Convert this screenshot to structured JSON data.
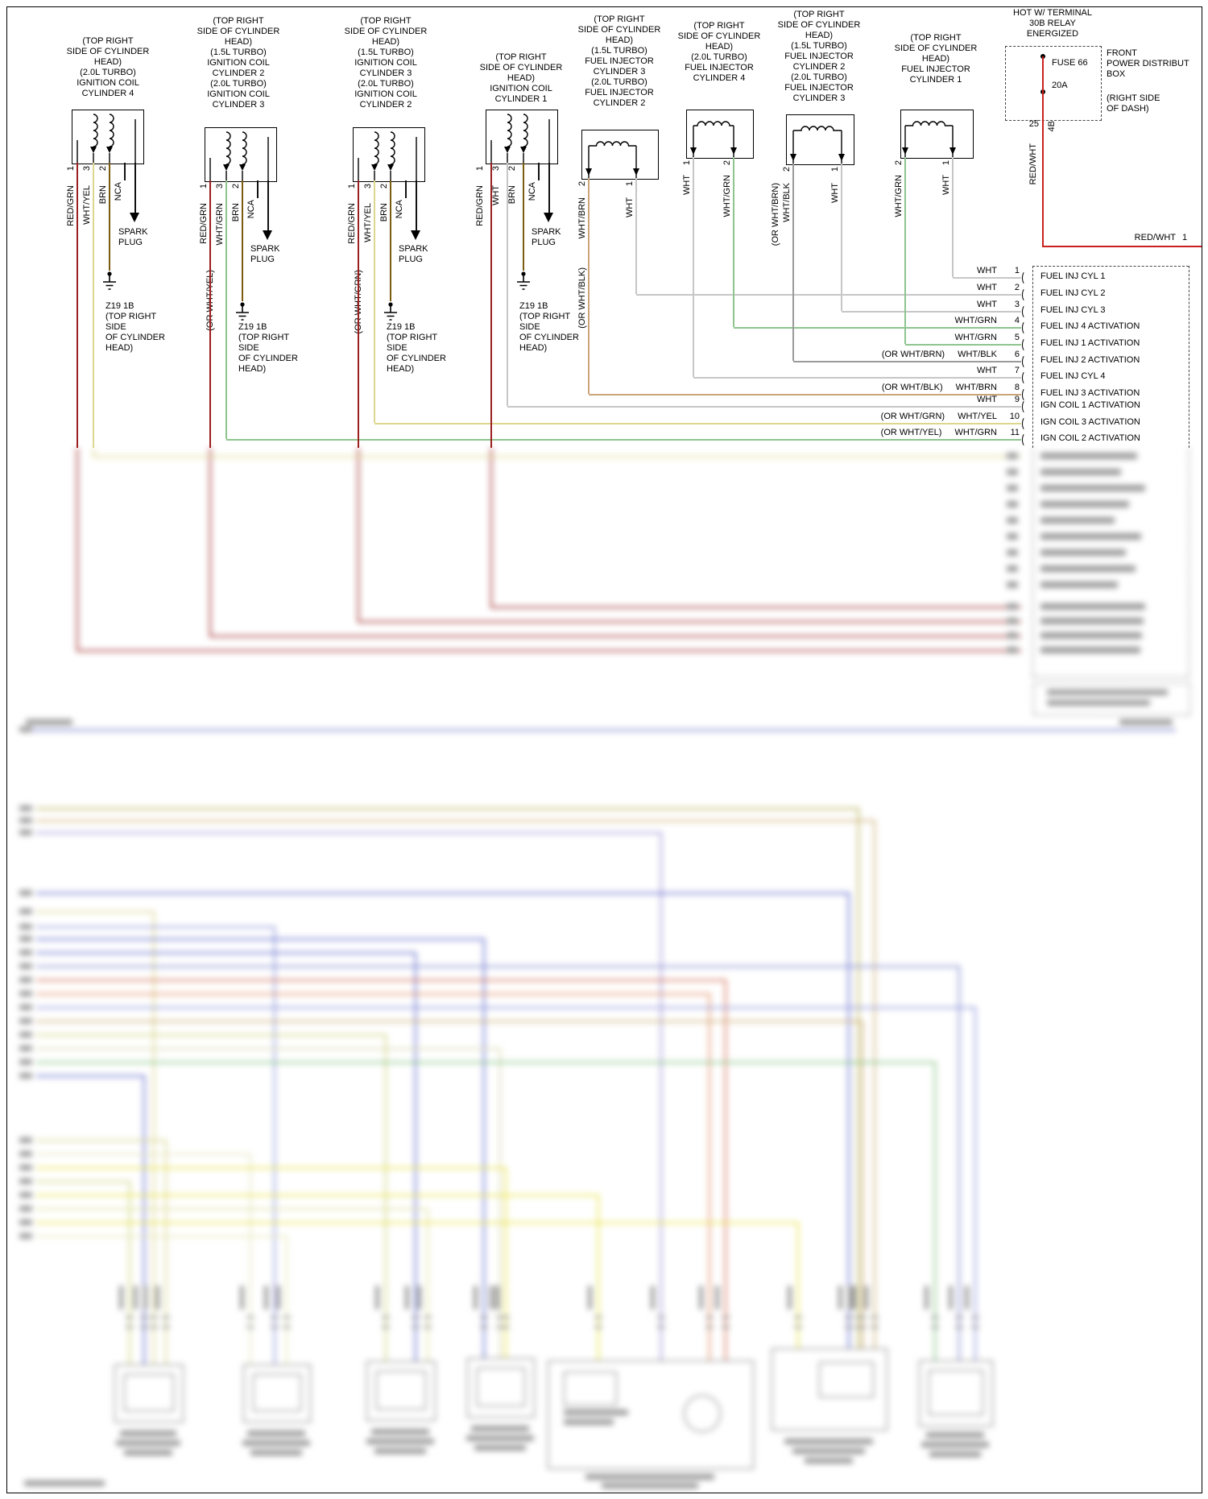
{
  "coils": [
    {
      "header": "(TOP RIGHT\nSIDE OF CYLINDER\nHEAD)\n(2.0L TURBO)\nIGNITION COIL\nCYLINDER 4",
      "pin1": "1",
      "pin3": "3",
      "pin2": "2",
      "wire1": "RED/GRN",
      "wire3": "WHT/YEL",
      "wire2": "BRN",
      "nca": "NCA",
      "alt3": "",
      "spark": "SPARK\nPLUG",
      "ground": "Z19 1B\n(TOP RIGHT\nSIDE\nOF CYLINDER\nHEAD)"
    },
    {
      "header": "(TOP RIGHT\nSIDE OF CYLINDER\nHEAD)\n(1.5L TURBO)\nIGNITION COIL\nCYLINDER 2\n(2.0L TURBO)\nIGNITION COIL\nCYLINDER 3",
      "pin1": "1",
      "pin3": "3",
      "pin2": "2",
      "wire1": "RED/GRN",
      "wire3": "WHT/GRN",
      "wire2": "BRN",
      "nca": "NCA",
      "alt3": "(OR WHT/YEL)",
      "spark": "SPARK\nPLUG",
      "ground": "Z19 1B\n(TOP RIGHT\nSIDE\nOF CYLINDER\nHEAD)"
    },
    {
      "header": "(TOP RIGHT\nSIDE OF CYLINDER\nHEAD)\n(1.5L TURBO)\nIGNITION COIL\nCYLINDER 3\n(2.0L TURBO)\nIGNITION COIL\nCYLINDER 2",
      "pin1": "1",
      "pin3": "3",
      "pin2": "2",
      "wire1": "RED/GRN",
      "wire3": "WHT/YEL",
      "wire2": "BRN",
      "nca": "NCA",
      "alt3": "(OR WHT/GRN)",
      "spark": "SPARK\nPLUG",
      "ground": "Z19 1B\n(TOP RIGHT\nSIDE\nOF CYLINDER\nHEAD)"
    },
    {
      "header": "(TOP RIGHT\nSIDE OF CYLINDER\nHEAD)\nIGNITION COIL\nCYLINDER 1",
      "pin1": "1",
      "pin3": "3",
      "pin2": "2",
      "wire1": "RED/GRN",
      "wire3": "WHT",
      "wire2": "BRN",
      "nca": "NCA",
      "alt3": "",
      "spark": "SPARK\nPLUG",
      "ground": "Z19 1B\n(TOP RIGHT\nSIDE\nOF CYLINDER\nHEAD)"
    }
  ],
  "injectors": [
    {
      "header": "(TOP RIGHT\nSIDE OF CYLINDER\nHEAD)\n(1.5L TURBO)\nFUEL INJECTOR\nCYLINDER 3\n(2.0L TURBO)\nFUEL INJECTOR\nCYLINDER 2",
      "pinL": "2",
      "pinR": "1",
      "wireL": "WHT/BRN",
      "altL": "(OR WHT/BLK)",
      "wireR": "WHT"
    },
    {
      "header": "(TOP RIGHT\nSIDE OF CYLINDER\nHEAD)\n(2.0L TURBO)\nFUEL INJECTOR\nCYLINDER 4",
      "pinL": "1",
      "pinR": "2",
      "wireL": "WHT",
      "altL": "",
      "wireR": "WHT/GRN"
    },
    {
      "header": "(TOP RIGHT\nSIDE OF CYLINDER\nHEAD)\n(1.5L TURBO)\nFUEL INJECTOR\nCYLINDER 2\n(2.0L TURBO)\nFUEL INJECTOR\nCYLINDER 3",
      "pinL": "2",
      "pinR": "1",
      "wireL": "WHT/BLK",
      "altL": "(OR WHT/BRN)",
      "wireR": "WHT"
    },
    {
      "header": "(TOP RIGHT\nSIDE OF CYLINDER\nHEAD)\nFUEL INJECTOR\nCYLINDER 1",
      "pinL": "2",
      "pinR": "1",
      "wireL": "WHT/GRN",
      "altL": "",
      "wireR": "WHT"
    }
  ],
  "power": {
    "hot": "HOT W/ TERMINAL\n30B RELAY\nENERGIZED",
    "fuse": "FUSE 66",
    "amp": "20A",
    "box": "FRONT\nPOWER DISTRIBUT\nBOX",
    "loc": "(RIGHT SIDE\nOF DASH)",
    "pin": "25",
    "conn": "4B",
    "wire_v": "RED/WHT",
    "wire_h": "RED/WHT",
    "pin_h": "1"
  },
  "connector": {
    "rows": [
      {
        "alt": "",
        "wire": "WHT",
        "pin": "1",
        "name": "FUEL INJ CYL 1"
      },
      {
        "alt": "",
        "wire": "WHT",
        "pin": "2",
        "name": "FUEL INJ CYL 2"
      },
      {
        "alt": "",
        "wire": "WHT",
        "pin": "3",
        "name": "FUEL INJ CYL 3"
      },
      {
        "alt": "",
        "wire": "WHT/GRN",
        "pin": "4",
        "name": "FUEL INJ 4 ACTIVATION"
      },
      {
        "alt": "",
        "wire": "WHT/GRN",
        "pin": "5",
        "name": "FUEL INJ 1 ACTIVATION"
      },
      {
        "alt": "(OR WHT/BRN)",
        "wire": "WHT/BLK",
        "pin": "6",
        "name": "FUEL INJ 2 ACTIVATION"
      },
      {
        "alt": "",
        "wire": "WHT",
        "pin": "7",
        "name": "FUEL INJ CYL 4"
      },
      {
        "alt": "(OR WHT/BLK)",
        "wire": "WHT/BRN",
        "pin": "8",
        "name": "FUEL INJ 3 ACTIVATION"
      },
      {
        "alt": "",
        "wire": "WHT",
        "pin": "9",
        "name": "IGN COIL 1 ACTIVATION"
      },
      {
        "alt": "(OR WHT/GRN)",
        "wire": "WHT/YEL",
        "pin": "10",
        "name": "IGN COIL 3 ACTIVATION"
      },
      {
        "alt": "(OR WHT/YEL)",
        "wire": "WHT/GRN",
        "pin": "11",
        "name": "IGN COIL 2 ACTIVATION"
      }
    ]
  },
  "colors": {
    "red_grn": "#9b1f1f",
    "wht_yel": "#ddd78e",
    "brn": "#7a5c10",
    "wht": "#c6c6c6",
    "wht_grn": "#8fc48f",
    "wht_blk": "#9a9a9a",
    "wht_brn": "#c9a579",
    "red_wht": "#cc2020"
  }
}
